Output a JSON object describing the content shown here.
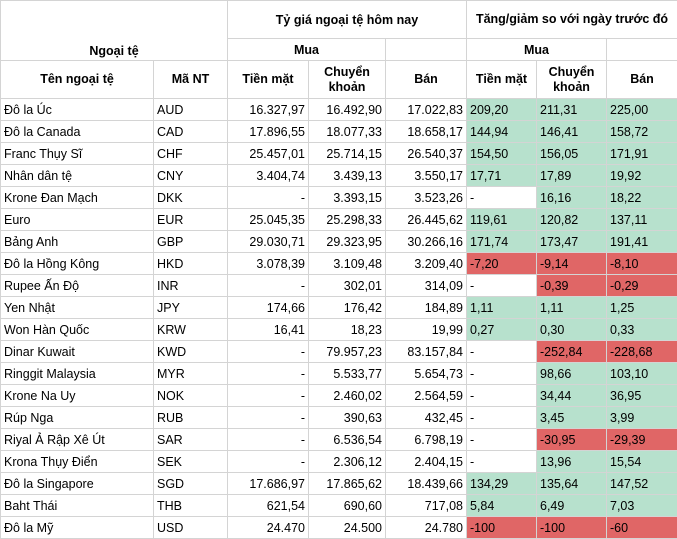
{
  "header": {
    "group_currency": "Ngoại tệ",
    "group_today": "Tỷ giá ngoại tệ hôm nay",
    "group_change": "Tăng/giảm so với ngày trước đó",
    "buy_today": "Mua",
    "buy_change": "Mua",
    "col_name": "Tên ngoại tệ",
    "col_code": "Mã NT",
    "col_cash": "Tiền mặt",
    "col_transfer": "Chuyển khoản",
    "col_sell": "Bán",
    "col_chg_cash": "Tiền mặt",
    "col_chg_transfer": "Chuyển khoản",
    "col_chg_sell": "Bán"
  },
  "colors": {
    "positive": "#b7e1cd",
    "negative": "#e06666"
  },
  "rows": [
    {
      "name": "Đô la Úc",
      "code": "AUD",
      "cash": "16.327,97",
      "transfer": "16.492,90",
      "sell": "17.022,83",
      "c_cash": "209,20",
      "c_transfer": "211,31",
      "c_sell": "225,00",
      "s_cash": "pos",
      "s_transfer": "pos",
      "s_sell": "pos"
    },
    {
      "name": "Đô la Canada",
      "code": "CAD",
      "cash": "17.896,55",
      "transfer": "18.077,33",
      "sell": "18.658,17",
      "c_cash": "144,94",
      "c_transfer": "146,41",
      "c_sell": "158,72",
      "s_cash": "pos",
      "s_transfer": "pos",
      "s_sell": "pos"
    },
    {
      "name": "Franc Thụy Sĩ",
      "code": "CHF",
      "cash": "25.457,01",
      "transfer": "25.714,15",
      "sell": "26.540,37",
      "c_cash": "154,50",
      "c_transfer": "156,05",
      "c_sell": "171,91",
      "s_cash": "pos",
      "s_transfer": "pos",
      "s_sell": "pos"
    },
    {
      "name": "Nhân dân tệ",
      "code": "CNY",
      "cash": "3.404,74",
      "transfer": "3.439,13",
      "sell": "3.550,17",
      "c_cash": "17,71",
      "c_transfer": "17,89",
      "c_sell": "19,92",
      "s_cash": "pos",
      "s_transfer": "pos",
      "s_sell": "pos"
    },
    {
      "name": "Krone Đan Mạch",
      "code": "DKK",
      "cash": "-",
      "transfer": "3.393,15",
      "sell": "3.523,26",
      "c_cash": "-",
      "c_transfer": "16,16",
      "c_sell": "18,22",
      "s_cash": "empty",
      "s_transfer": "pos",
      "s_sell": "pos"
    },
    {
      "name": "Euro",
      "code": "EUR",
      "cash": "25.045,35",
      "transfer": "25.298,33",
      "sell": "26.445,62",
      "c_cash": "119,61",
      "c_transfer": "120,82",
      "c_sell": "137,11",
      "s_cash": "pos",
      "s_transfer": "pos",
      "s_sell": "pos"
    },
    {
      "name": "Bảng Anh",
      "code": "GBP",
      "cash": "29.030,71",
      "transfer": "29.323,95",
      "sell": "30.266,16",
      "c_cash": "171,74",
      "c_transfer": "173,47",
      "c_sell": "191,41",
      "s_cash": "pos",
      "s_transfer": "pos",
      "s_sell": "pos"
    },
    {
      "name": "Đô la Hồng Kông",
      "code": "HKD",
      "cash": "3.078,39",
      "transfer": "3.109,48",
      "sell": "3.209,40",
      "c_cash": "-7,20",
      "c_transfer": "-9,14",
      "c_sell": "-8,10",
      "s_cash": "neg",
      "s_transfer": "neg",
      "s_sell": "neg"
    },
    {
      "name": "Rupee Ấn Độ",
      "code": "INR",
      "cash": "-",
      "transfer": "302,01",
      "sell": "314,09",
      "c_cash": "-",
      "c_transfer": "-0,39",
      "c_sell": "-0,29",
      "s_cash": "empty",
      "s_transfer": "neg",
      "s_sell": "neg"
    },
    {
      "name": "Yen Nhật",
      "code": "JPY",
      "cash": "174,66",
      "transfer": "176,42",
      "sell": "184,89",
      "c_cash": "1,11",
      "c_transfer": "1,11",
      "c_sell": "1,25",
      "s_cash": "pos",
      "s_transfer": "pos",
      "s_sell": "pos"
    },
    {
      "name": "Won Hàn Quốc",
      "code": "KRW",
      "cash": "16,41",
      "transfer": "18,23",
      "sell": "19,99",
      "c_cash": "0,27",
      "c_transfer": "0,30",
      "c_sell": "0,33",
      "s_cash": "pos",
      "s_transfer": "pos",
      "s_sell": "pos"
    },
    {
      "name": "Dinar Kuwait",
      "code": "KWD",
      "cash": "-",
      "transfer": "79.957,23",
      "sell": "83.157,84",
      "c_cash": "-",
      "c_transfer": "-252,84",
      "c_sell": "-228,68",
      "s_cash": "empty",
      "s_transfer": "neg",
      "s_sell": "neg"
    },
    {
      "name": "Ringgit Malaysia",
      "code": "MYR",
      "cash": "-",
      "transfer": "5.533,77",
      "sell": "5.654,73",
      "c_cash": "-",
      "c_transfer": "98,66",
      "c_sell": "103,10",
      "s_cash": "empty",
      "s_transfer": "pos",
      "s_sell": "pos"
    },
    {
      "name": "Krone Na Uy",
      "code": "NOK",
      "cash": "-",
      "transfer": "2.460,02",
      "sell": "2.564,59",
      "c_cash": "-",
      "c_transfer": "34,44",
      "c_sell": "36,95",
      "s_cash": "empty",
      "s_transfer": "pos",
      "s_sell": "pos"
    },
    {
      "name": "Rúp Nga",
      "code": "RUB",
      "cash": "-",
      "transfer": "390,63",
      "sell": "432,45",
      "c_cash": "-",
      "c_transfer": "3,45",
      "c_sell": "3,99",
      "s_cash": "empty",
      "s_transfer": "pos",
      "s_sell": "pos"
    },
    {
      "name": "Riyal Ả Rập Xê Út",
      "code": "SAR",
      "cash": "-",
      "transfer": "6.536,54",
      "sell": "6.798,19",
      "c_cash": "-",
      "c_transfer": "-30,95",
      "c_sell": "-29,39",
      "s_cash": "empty",
      "s_transfer": "neg",
      "s_sell": "neg"
    },
    {
      "name": "Krona Thụy Điển",
      "code": "SEK",
      "cash": "-",
      "transfer": "2.306,12",
      "sell": "2.404,15",
      "c_cash": "-",
      "c_transfer": "13,96",
      "c_sell": "15,54",
      "s_cash": "empty",
      "s_transfer": "pos",
      "s_sell": "pos"
    },
    {
      "name": "Đô la Singapore",
      "code": "SGD",
      "cash": "17.686,97",
      "transfer": "17.865,62",
      "sell": "18.439,66",
      "c_cash": "134,29",
      "c_transfer": "135,64",
      "c_sell": "147,52",
      "s_cash": "pos",
      "s_transfer": "pos",
      "s_sell": "pos"
    },
    {
      "name": "Baht Thái",
      "code": "THB",
      "cash": "621,54",
      "transfer": "690,60",
      "sell": "717,08",
      "c_cash": "5,84",
      "c_transfer": "6,49",
      "c_sell": "7,03",
      "s_cash": "pos",
      "s_transfer": "pos",
      "s_sell": "pos"
    },
    {
      "name": "Đô la Mỹ",
      "code": "USD",
      "cash": "24.470",
      "transfer": "24.500",
      "sell": "24.780",
      "c_cash": "-100",
      "c_transfer": "-100",
      "c_sell": "-60",
      "s_cash": "neg",
      "s_transfer": "neg",
      "s_sell": "neg"
    }
  ]
}
